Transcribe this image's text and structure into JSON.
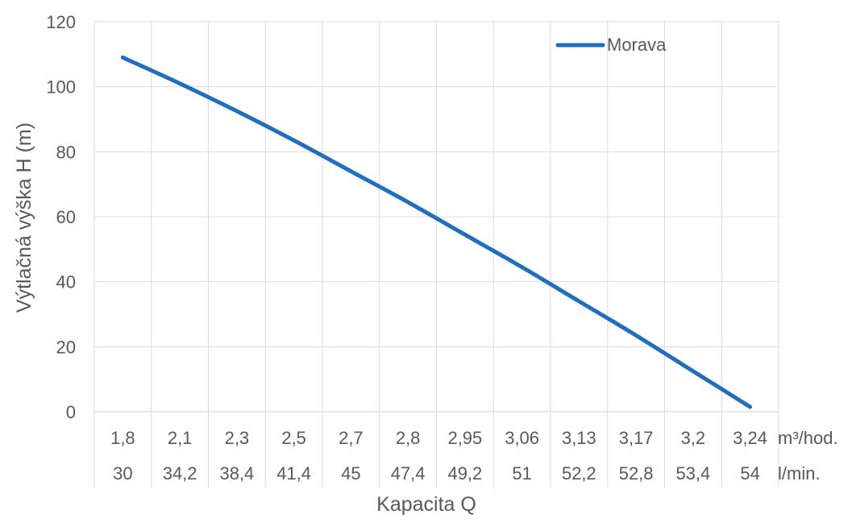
{
  "chart_data": {
    "type": "line",
    "title": "",
    "xlabel": "Kapacita Q",
    "ylabel": "Výtlačná výška H (m)",
    "ylim": [
      0,
      120
    ],
    "yticks": [
      "0",
      "20",
      "40",
      "60",
      "80",
      "100",
      "120"
    ],
    "categories_m3h": [
      "1,8",
      "2,1",
      "2,3",
      "2,5",
      "2,7",
      "2,8",
      "2,95",
      "3,06",
      "3,13",
      "3,17",
      "3,2",
      "3,24"
    ],
    "categories_lmin": [
      "30",
      "34,2",
      "38,4",
      "41,4",
      "45",
      "47,4",
      "49,2",
      "51",
      "52,2",
      "52,8",
      "53,4",
      "54"
    ],
    "unit_m3h": "m³/hod.",
    "unit_lmin": "l/min.",
    "series": [
      {
        "name": "Morava",
        "color": "#1F6FC0",
        "values": [
          109,
          101,
          92.5,
          83.5,
          74,
          64.5,
          54.5,
          44.5,
          34,
          23.5,
          12.5,
          1.5
        ]
      }
    ],
    "grid": true,
    "legend_position": "top-right"
  }
}
